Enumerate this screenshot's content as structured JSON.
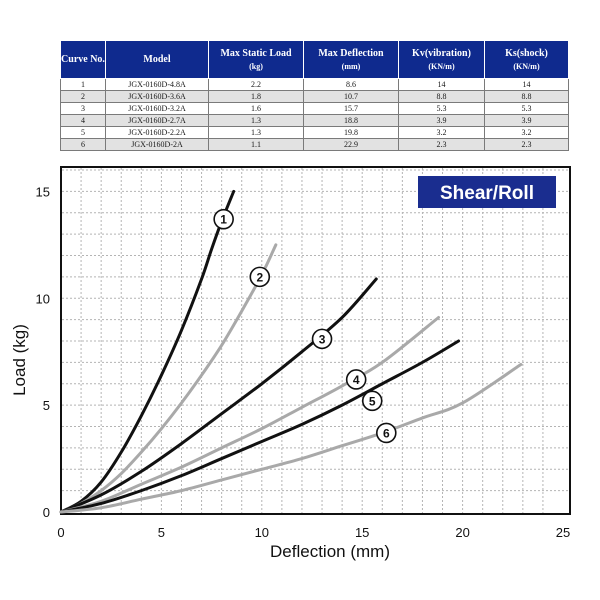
{
  "spec_table": {
    "headers": [
      {
        "main": "Curve No.",
        "unit": ""
      },
      {
        "main": "Model",
        "unit": ""
      },
      {
        "main": "Max Static Load",
        "unit": "(kg)"
      },
      {
        "main": "Max Deflection",
        "unit": "(mm)"
      },
      {
        "main": "Kv(vibration)",
        "unit": "(KN/m)"
      },
      {
        "main": "Ks(shock)",
        "unit": "(KN/m)"
      }
    ],
    "rows": [
      [
        "1",
        "JGX-0160D-4.8A",
        "2.2",
        "8.6",
        "14",
        "14"
      ],
      [
        "2",
        "JGX-0160D-3.6A",
        "1.8",
        "10.7",
        "8.8",
        "8.8"
      ],
      [
        "3",
        "JGX-0160D-3.2A",
        "1.6",
        "15.7",
        "5.3",
        "5.3"
      ],
      [
        "4",
        "JGX-0160D-2.7A",
        "1.3",
        "18.8",
        "3.9",
        "3.9"
      ],
      [
        "5",
        "JGX-0160D-2.2A",
        "1.3",
        "19.8",
        "3.2",
        "3.2"
      ],
      [
        "6",
        "JGX-0160D-2A",
        "1.1",
        "22.9",
        "2.3",
        "2.3"
      ]
    ]
  },
  "chart_data": {
    "type": "line",
    "title": "Shear/Roll",
    "xlabel": "Deflection (mm)",
    "ylabel": "Load (kg)",
    "xlim": [
      0,
      25
    ],
    "ylim": [
      0,
      16
    ],
    "xticks": [
      0,
      5,
      10,
      15,
      20,
      25
    ],
    "yticks": [
      0,
      5,
      10,
      15
    ],
    "grid": true,
    "series": [
      {
        "name": "1",
        "color": "#111111",
        "x": [
          0,
          1,
          2,
          3,
          4,
          5,
          6,
          7,
          7.5,
          8,
          8.6
        ],
        "y": [
          0,
          0.5,
          1.4,
          2.8,
          4.5,
          6.4,
          8.5,
          10.9,
          12.3,
          13.6,
          15.0
        ],
        "marker": {
          "x": 8.1,
          "y": 13.7
        }
      },
      {
        "name": "2",
        "color": "#a9a9a9",
        "x": [
          0,
          1,
          2,
          3,
          4,
          5,
          6,
          7,
          8,
          9,
          10,
          10.7
        ],
        "y": [
          0,
          0.4,
          1.0,
          1.8,
          2.8,
          3.9,
          5.1,
          6.4,
          7.8,
          9.4,
          11.1,
          12.5
        ],
        "marker": {
          "x": 9.9,
          "y": 11.0
        }
      },
      {
        "name": "3",
        "color": "#111111",
        "x": [
          0,
          2,
          4,
          6,
          8,
          10,
          12,
          14,
          15.7
        ],
        "y": [
          0,
          0.8,
          1.9,
          3.2,
          4.6,
          6.0,
          7.5,
          9.1,
          10.9
        ],
        "marker": {
          "x": 13.0,
          "y": 8.1
        }
      },
      {
        "name": "4",
        "color": "#a9a9a9",
        "x": [
          0,
          2,
          4,
          6,
          8,
          10,
          12,
          14,
          16,
          18.8
        ],
        "y": [
          0,
          0.5,
          1.3,
          2.1,
          3.0,
          3.9,
          4.9,
          5.9,
          7.0,
          9.1
        ],
        "marker": {
          "x": 14.7,
          "y": 6.2
        }
      },
      {
        "name": "5",
        "color": "#111111",
        "x": [
          0,
          2,
          4,
          6,
          8,
          10,
          12,
          14,
          16,
          18,
          19.8
        ],
        "y": [
          0,
          0.4,
          1.0,
          1.7,
          2.5,
          3.3,
          4.1,
          5.0,
          6.0,
          7.0,
          8.0
        ],
        "marker": {
          "x": 15.5,
          "y": 5.2
        }
      },
      {
        "name": "6",
        "color": "#a9a9a9",
        "x": [
          0,
          2,
          4,
          6,
          8,
          10,
          12,
          14,
          16,
          18,
          20,
          22.9
        ],
        "y": [
          0,
          0.2,
          0.6,
          1.0,
          1.5,
          2.0,
          2.5,
          3.1,
          3.7,
          4.4,
          5.1,
          6.9
        ],
        "marker": {
          "x": 16.2,
          "y": 3.7
        }
      }
    ]
  },
  "colors": {
    "table_header_bg": "#0f2a8e",
    "title_box_bg": "#1a2d8f",
    "grid": "#b4b4b4",
    "frame": "#111111"
  }
}
